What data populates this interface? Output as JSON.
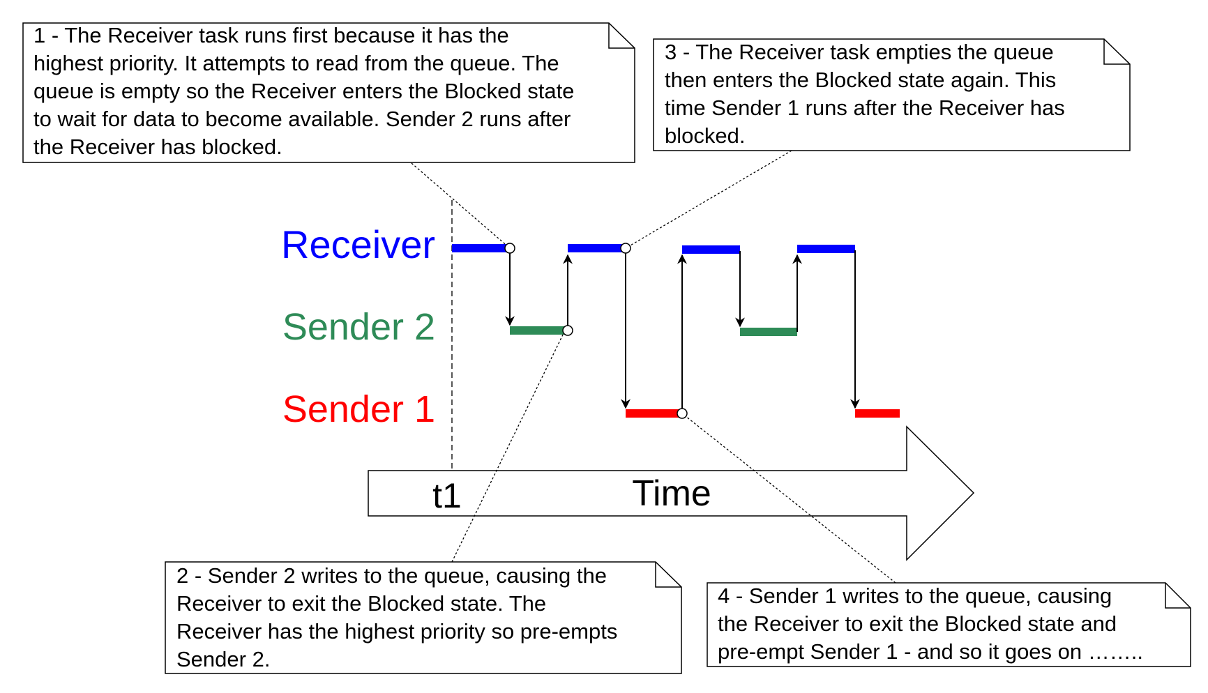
{
  "tasks": {
    "receiver": "Receiver",
    "sender2": "Sender 2",
    "sender1": "Sender 1"
  },
  "axis": {
    "marker": "t1",
    "label": "Time"
  },
  "notes": {
    "note1": [
      "1 - The Receiver task runs first because it has the",
      "highest priority.  It attempts to read from the queue.  The",
      "queue is empty so the Receiver enters the Blocked state",
      "to wait for data to become available.  Sender 2 runs after",
      "the Receiver has blocked."
    ],
    "note2": [
      "2 - Sender 2 writes to the queue, causing the",
      "Receiver to exit the Blocked state.  The",
      "Receiver has the highest priority so pre-empts",
      "Sender 2."
    ],
    "note3": [
      "3 - The Receiver task empties the queue",
      "then enters the Blocked state again.  This",
      "time Sender 1 runs after the Receiver has",
      "blocked."
    ],
    "note4": [
      "4 - Sender 1 writes to the queue, causing",
      "the Receiver to exit the Blocked state and",
      "pre-empt Sender 1 - and so it goes on …….."
    ]
  },
  "colors": {
    "receiver": "#0000ff",
    "sender2": "#2e8b57",
    "sender1": "#ff0000",
    "line": "#000000"
  }
}
